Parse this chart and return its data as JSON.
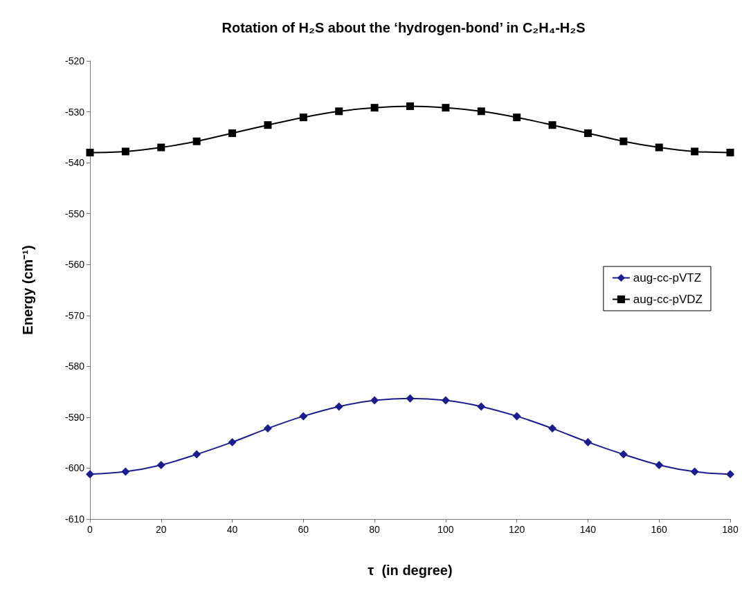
{
  "chart_data": {
    "type": "line",
    "title": "Rotation of H₂S about the ‘hydrogen-bond’ in C₂H₄-H₂S",
    "xlabel": "τ  (in degree)",
    "ylabel": "Energy (cm⁻¹)",
    "x": [
      0,
      10,
      20,
      30,
      40,
      50,
      60,
      70,
      80,
      90,
      100,
      110,
      120,
      130,
      140,
      150,
      160,
      170,
      180
    ],
    "series": [
      {
        "name": "aug-cc-pVTZ",
        "color": "#1c1c8c",
        "marker": "diamond",
        "values": [
          -601.2,
          -600.7,
          -599.4,
          -597.3,
          -594.9,
          -592.2,
          -589.8,
          -587.9,
          -586.7,
          -586.3,
          -586.7,
          -587.9,
          -589.8,
          -592.2,
          -594.9,
          -597.3,
          -599.4,
          -600.7,
          -601.2
        ]
      },
      {
        "name": "aug-cc-pVDZ",
        "color": "#000000",
        "marker": "square",
        "values": [
          -538.0,
          -537.8,
          -537.0,
          -535.8,
          -534.2,
          -532.6,
          -531.1,
          -529.9,
          -529.2,
          -528.9,
          -529.2,
          -529.9,
          -531.1,
          -532.6,
          -534.2,
          -535.8,
          -537.0,
          -537.8,
          -538.0
        ]
      }
    ],
    "xlim": [
      0,
      180
    ],
    "xticks": [
      0,
      20,
      40,
      60,
      80,
      100,
      120,
      140,
      160,
      180
    ],
    "ylim": [
      -610,
      -520
    ],
    "yticks": [
      -610,
      -600,
      -590,
      -580,
      -570,
      -560,
      -550,
      -540,
      -530,
      -520
    ],
    "grid": false,
    "legend": "right"
  }
}
